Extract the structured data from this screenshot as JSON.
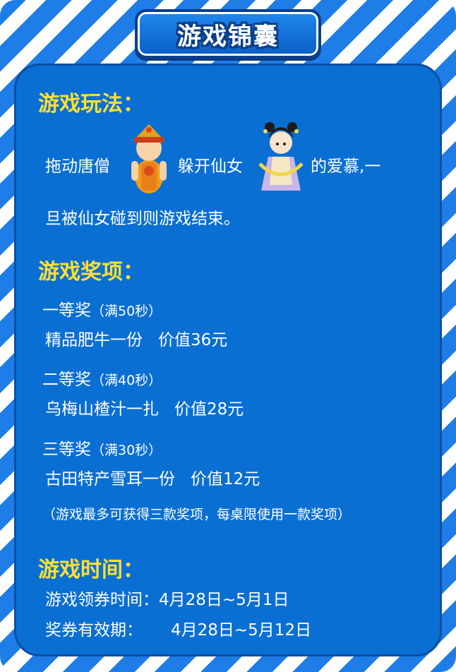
{
  "title": "游戏锦囊",
  "gameplay": {
    "heading": "游戏玩法：",
    "line1_part1": "拖动唐僧",
    "line1_part2": "躲开仙女",
    "line1_part3": "的爱慕,一",
    "line2": "旦被仙女碰到则游戏结束。",
    "icons": [
      "monk-icon",
      "fairy-icon"
    ]
  },
  "prizes": {
    "heading": "游戏奖项：",
    "items": [
      {
        "rank": "一等奖",
        "condition": "（满50秒）",
        "prize": "精品肥牛一份",
        "value": "价值36元"
      },
      {
        "rank": "二等奖",
        "condition": "（满40秒）",
        "prize": "乌梅山楂汁一扎",
        "value": "价值28元"
      },
      {
        "rank": "三等奖",
        "condition": "（满30秒）",
        "prize": "古田特产雪耳一份",
        "value": "价值12元"
      }
    ],
    "note": "（游戏最多可获得三款奖项，每桌限使用一款奖项）"
  },
  "time": {
    "heading": "游戏时间：",
    "coupon_label": "游戏领券时间：",
    "coupon_value": "4月28日~5月1日",
    "valid_label": "奖券有效期：",
    "valid_value": "4月28日~5月12日"
  },
  "colors": {
    "heading": "#ffe033",
    "panel": "#0a6fd3",
    "stripe": "#1e7de6"
  }
}
